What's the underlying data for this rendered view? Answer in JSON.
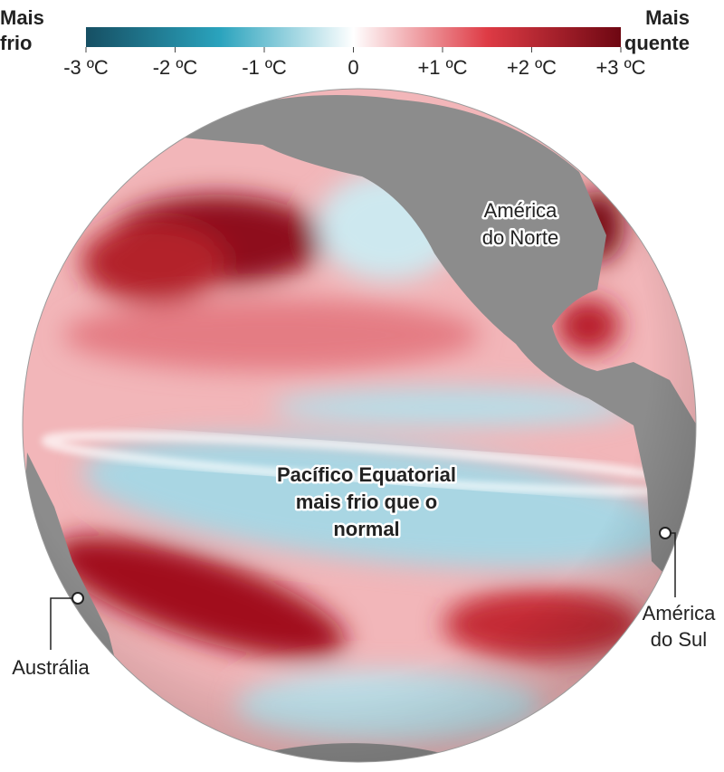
{
  "legend": {
    "left_label": [
      "Mais",
      "frio"
    ],
    "right_label": [
      "Mais",
      "quente"
    ],
    "range": [
      -3,
      3
    ],
    "ticks": [
      {
        "value": -3,
        "label": "-3 ºC"
      },
      {
        "value": -2,
        "label": "-2 ºC"
      },
      {
        "value": -1,
        "label": "-1 ºC"
      },
      0,
      {
        "value": 1,
        "label": "+1 ºC"
      },
      {
        "value": 2,
        "label": "+2 ºC"
      },
      {
        "value": 3,
        "label": "+3 ºC"
      }
    ]
  },
  "labels": {
    "north_america": [
      "América",
      "do Norte"
    ],
    "equatorial_pacific": [
      "Pacífico Equatorial",
      "mais frio que o",
      "normal"
    ],
    "australia": "Austrália",
    "south_america": [
      "América",
      "do Sul"
    ]
  }
}
